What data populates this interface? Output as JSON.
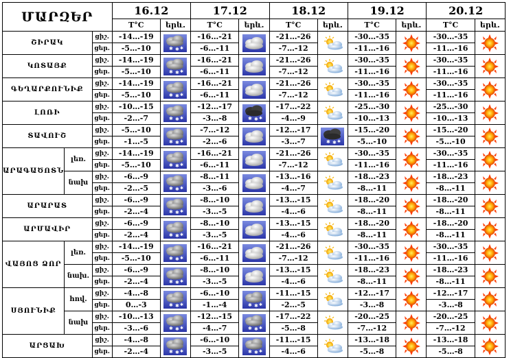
{
  "header": {
    "region_title": "ՄԱՐԶԵՐ",
    "temp_label": "T°C",
    "weather_label": "երև.",
    "dates": [
      "16.12",
      "17.12",
      "18.12",
      "19.12",
      "20.12"
    ]
  },
  "daynight": [
    "ցիշ.",
    "ցեր."
  ],
  "regions": [
    {
      "name": "ՇԻՐԱԿ",
      "rows": [
        {
          "sub": "",
          "days": [
            {
              "n": "-14…-19",
              "d": "-5…-10",
              "icon": "snow-cloud-icon"
            },
            {
              "n": "-16…-21",
              "d": "-6…-11",
              "icon": "cloud-icon"
            },
            {
              "n": "-21…-26",
              "d": "-7…-12",
              "icon": "partly-cloudy-icon"
            },
            {
              "n": "-30…-35",
              "d": "-11…-16",
              "icon": "sun-icon"
            },
            {
              "n": "-30…-35",
              "d": "-11…-16",
              "icon": "sun-icon"
            }
          ]
        }
      ]
    },
    {
      "name": "ԿՈՏԱՅՔ",
      "rows": [
        {
          "sub": "",
          "days": [
            {
              "n": "-14…-19",
              "d": "-5…-10",
              "icon": "snow-cloud-icon"
            },
            {
              "n": "-16…-21",
              "d": "-6…-11",
              "icon": "cloud-icon"
            },
            {
              "n": "-21…-26",
              "d": "-7…-12",
              "icon": "partly-cloudy-icon"
            },
            {
              "n": "-30…-35",
              "d": "-11…-16",
              "icon": "sun-icon"
            },
            {
              "n": "-30…-35",
              "d": "-11…-16",
              "icon": "sun-icon"
            }
          ]
        }
      ]
    },
    {
      "name": "ԳԵՂԱՐՔՈՒՆԻՔ",
      "rows": [
        {
          "sub": "",
          "days": [
            {
              "n": "-14…-19",
              "d": "-5…-10",
              "icon": "snow-cloud-icon"
            },
            {
              "n": "-16…-21",
              "d": "-6…-11",
              "icon": "cloud-icon"
            },
            {
              "n": "-21…-26",
              "d": "-7…-12",
              "icon": "partly-cloudy-icon"
            },
            {
              "n": "-30…-35",
              "d": "-11…-16",
              "icon": "sun-icon"
            },
            {
              "n": "-30…-35",
              "d": "-11…-16",
              "icon": "sun-icon"
            }
          ]
        }
      ]
    },
    {
      "name": "ԼՈՌԻ",
      "rows": [
        {
          "sub": "",
          "days": [
            {
              "n": "-10…-15",
              "d": "-2…-7",
              "icon": "snow-cloud-icon"
            },
            {
              "n": "-12…-17",
              "d": "-3…-8",
              "icon": "dark-snow-cloud-icon"
            },
            {
              "n": "-17…-22",
              "d": "-4…-9",
              "icon": "partly-cloudy-icon"
            },
            {
              "n": "-25…-30",
              "d": "-10…-13",
              "icon": "sun-icon"
            },
            {
              "n": "-25…-30",
              "d": "-10…-13",
              "icon": "sun-icon"
            }
          ]
        }
      ]
    },
    {
      "name": "ՏԱՎՈՒՇ",
      "rows": [
        {
          "sub": "",
          "days": [
            {
              "n": "-5…-10",
              "d": "-1…-5",
              "icon": "snow-cloud-icon"
            },
            {
              "n": "-7…-12",
              "d": "-2…-6",
              "icon": "cloud-icon"
            },
            {
              "n": "-12…-17",
              "d": "-3…-7",
              "icon": "dark-snow-cloud-icon"
            },
            {
              "n": "-15…-20",
              "d": "-5…-10",
              "icon": "sun-icon"
            },
            {
              "n": "-15…-20",
              "d": "-5…-10",
              "icon": "sun-icon"
            }
          ]
        }
      ]
    },
    {
      "name": "ԱՐԱԳԱԾՈՏՆ",
      "rows": [
        {
          "sub": "լեռ.",
          "days": [
            {
              "n": "-14…-19",
              "d": "-5…-10",
              "icon": "snow-cloud-icon"
            },
            {
              "n": "-16…-21",
              "d": "-6…-11",
              "icon": "cloud-icon"
            },
            {
              "n": "-21…-26",
              "d": "-7…-12",
              "icon": "partly-cloudy-icon"
            },
            {
              "n": "-30…-35",
              "d": "-11…-16",
              "icon": "sun-icon"
            },
            {
              "n": "-30…-35",
              "d": "-11…-16",
              "icon": "sun-icon"
            }
          ]
        },
        {
          "sub": "նախ",
          "days": [
            {
              "n": "-6…-9",
              "d": "-2…-5",
              "icon": "snow-cloud-icon"
            },
            {
              "n": "-8…-11",
              "d": "-3…-6",
              "icon": "cloud-icon"
            },
            {
              "n": "-13…-16",
              "d": "-4…-7",
              "icon": "partly-cloudy-icon"
            },
            {
              "n": "-18…-23",
              "d": "-8…-11",
              "icon": "sun-icon"
            },
            {
              "n": "-18…-23",
              "d": "-8…-11",
              "icon": "sun-icon"
            }
          ]
        }
      ]
    },
    {
      "name": "ԱՐԱՐԱՏ",
      "rows": [
        {
          "sub": "",
          "days": [
            {
              "n": "-6…-9",
              "d": "-2…-4",
              "icon": "snow-cloud-icon"
            },
            {
              "n": "-8…-10",
              "d": "-3…-5",
              "icon": "cloud-icon"
            },
            {
              "n": "-13…-15",
              "d": "-4…-6",
              "icon": "partly-cloudy-icon"
            },
            {
              "n": "-18…-20",
              "d": "-8…-11",
              "icon": "sun-icon"
            },
            {
              "n": "-18…-20",
              "d": "-8…-11",
              "icon": "sun-icon"
            }
          ]
        }
      ]
    },
    {
      "name": "ԱՐՄԱՎԻՐ",
      "rows": [
        {
          "sub": "",
          "days": [
            {
              "n": "-6…-9",
              "d": "-2…-4",
              "icon": "snow-cloud-icon"
            },
            {
              "n": "-8…-10",
              "d": "-3…-5",
              "icon": "cloud-icon"
            },
            {
              "n": "-13…-15",
              "d": "-4…-6",
              "icon": "partly-cloudy-icon"
            },
            {
              "n": "-18…-20",
              "d": "-8…-11",
              "icon": "sun-icon"
            },
            {
              "n": "-18…-20",
              "d": "-8…-11",
              "icon": "sun-icon"
            }
          ]
        }
      ]
    },
    {
      "name": "ՎԱՅՈՑ ՁՈՐ",
      "rows": [
        {
          "sub": "լեռ.",
          "days": [
            {
              "n": "-14…-19",
              "d": "-5…-10",
              "icon": "snow-cloud-icon"
            },
            {
              "n": "-16…-21",
              "d": "-6…-11",
              "icon": "cloud-icon"
            },
            {
              "n": "-21…-26",
              "d": "-7…-12",
              "icon": "partly-cloudy-icon"
            },
            {
              "n": "-30…-35",
              "d": "-11…-16",
              "icon": "sun-icon"
            },
            {
              "n": "-30…-35",
              "d": "-11…-16",
              "icon": "sun-icon"
            }
          ]
        },
        {
          "sub": "նախ.",
          "days": [
            {
              "n": "-6…-9",
              "d": "-2…-4",
              "icon": "snow-cloud-icon"
            },
            {
              "n": "-8…-10",
              "d": "-3…-5",
              "icon": "cloud-icon"
            },
            {
              "n": "-13…-15",
              "d": "-4…-6",
              "icon": "partly-cloudy-icon"
            },
            {
              "n": "-18…-23",
              "d": "-8…-11",
              "icon": "sun-icon"
            },
            {
              "n": "-18…-23",
              "d": "-8…-11",
              "icon": "sun-icon"
            }
          ]
        }
      ]
    },
    {
      "name": "ՍՅՈՒՆԻՔ",
      "rows": [
        {
          "sub": "հով.",
          "days": [
            {
              "n": "-4…-8",
              "d": "0…-3",
              "icon": "snow-cloud-icon"
            },
            {
              "n": "-6…-10",
              "d": "-1…-4",
              "icon": "snow-cloud-icon"
            },
            {
              "n": "-11…-15",
              "d": "-2…-5",
              "icon": "partly-cloudy-icon"
            },
            {
              "n": "-12…-17",
              "d": "-3…-8",
              "icon": "sun-icon"
            },
            {
              "n": "-12…-17",
              "d": "-3…-8",
              "icon": "sun-icon"
            }
          ]
        },
        {
          "sub": "նախ",
          "days": [
            {
              "n": "-10…-13",
              "d": "-3…-6",
              "icon": "snow-cloud-icon"
            },
            {
              "n": "-12…-15",
              "d": "-4…-7",
              "icon": "snow-cloud-icon"
            },
            {
              "n": "-17…-22",
              "d": "-5…-8",
              "icon": "partly-cloudy-icon"
            },
            {
              "n": "-20…-25",
              "d": "-7…-12",
              "icon": "sun-icon"
            },
            {
              "n": "-20…-25",
              "d": "-7…-12",
              "icon": "sun-icon"
            }
          ]
        }
      ]
    },
    {
      "name": "ԱՐՑԱԽ",
      "rows": [
        {
          "sub": "",
          "days": [
            {
              "n": "-4…-8",
              "d": "-2…-4",
              "icon": "snow-cloud-icon"
            },
            {
              "n": "-6…-10",
              "d": "-3…-5",
              "icon": "snow-cloud-icon"
            },
            {
              "n": "-11…-15",
              "d": "-4…-6",
              "icon": "partly-cloudy-icon"
            },
            {
              "n": "-13…-18",
              "d": "-5…-8",
              "icon": "sun-icon"
            },
            {
              "n": "-13…-18",
              "d": "-5…-8",
              "icon": "sun-icon"
            }
          ]
        }
      ]
    }
  ]
}
